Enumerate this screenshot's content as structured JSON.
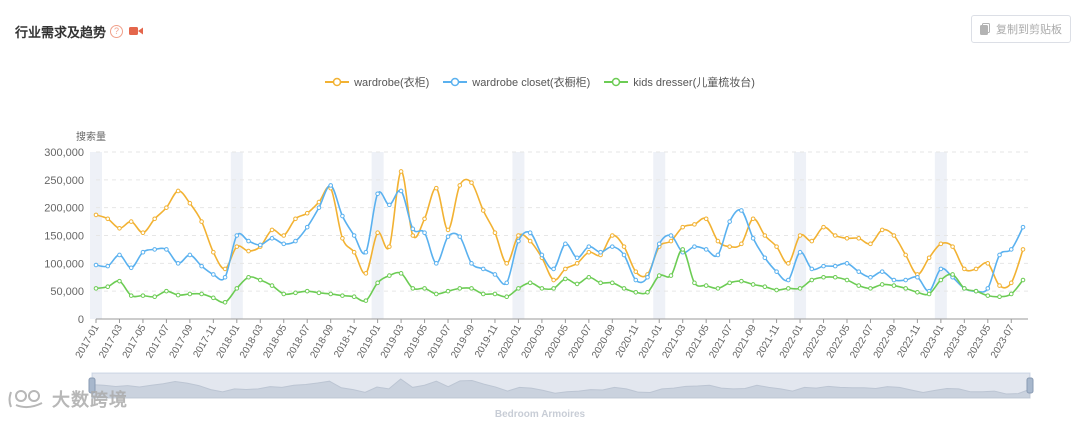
{
  "header": {
    "title": "行业需求及趋势",
    "help_icon": "question-circle-icon",
    "video_icon": "video-camera-icon",
    "copy_button_label": "复制到剪贴板",
    "copy_icon": "copy-icon"
  },
  "watermark": {
    "text": "大数跨境",
    "icon": "logo-icon"
  },
  "colors": {
    "wardrobe": "#f2b233",
    "closet": "#5ab1ef",
    "kids": "#6ccc54",
    "accent": "#e4664b"
  },
  "chart_data": {
    "type": "line",
    "title": "",
    "xlabel": "",
    "ylabel": "搜索量",
    "ylim": [
      0,
      300000
    ],
    "yticks": [
      "0",
      "50,000",
      "100,000",
      "150,000",
      "200,000",
      "250,000",
      "300,000"
    ],
    "grid": true,
    "legend_position": "top-center",
    "zoom_slider_label": "Bedroom Armoires",
    "x_tick_labels": [
      "2017-01",
      "2017-03",
      "2017-05",
      "2017-07",
      "2017-09",
      "2017-11",
      "2018-01",
      "2018-03",
      "2018-05",
      "2018-07",
      "2018-09",
      "2018-11",
      "2019-01",
      "2019-03",
      "2019-05",
      "2019-07",
      "2019-09",
      "2019-11",
      "2020-01",
      "2020-03",
      "2020-05",
      "2020-07",
      "2020-09",
      "2020-11",
      "2021-01",
      "2021-03",
      "2021-05",
      "2021-07",
      "2021-09",
      "2021-11",
      "2022-01",
      "2022-03",
      "2022-05",
      "2022-07",
      "2022-09",
      "2022-11",
      "2023-01",
      "2023-03",
      "2023-05",
      "2023-07"
    ],
    "x": [
      "2017-01",
      "2017-02",
      "2017-03",
      "2017-04",
      "2017-05",
      "2017-06",
      "2017-07",
      "2017-08",
      "2017-09",
      "2017-10",
      "2017-11",
      "2017-12",
      "2018-01",
      "2018-02",
      "2018-03",
      "2018-04",
      "2018-05",
      "2018-06",
      "2018-07",
      "2018-08",
      "2018-09",
      "2018-10",
      "2018-11",
      "2018-12",
      "2019-01",
      "2019-02",
      "2019-03",
      "2019-04",
      "2019-05",
      "2019-06",
      "2019-07",
      "2019-08",
      "2019-09",
      "2019-10",
      "2019-11",
      "2019-12",
      "2020-01",
      "2020-02",
      "2020-03",
      "2020-04",
      "2020-05",
      "2020-06",
      "2020-07",
      "2020-08",
      "2020-09",
      "2020-10",
      "2020-11",
      "2020-12",
      "2021-01",
      "2021-02",
      "2021-03",
      "2021-04",
      "2021-05",
      "2021-06",
      "2021-07",
      "2021-08",
      "2021-09",
      "2021-10",
      "2021-11",
      "2021-12",
      "2022-01",
      "2022-02",
      "2022-03",
      "2022-04",
      "2022-05",
      "2022-06",
      "2022-07",
      "2022-08",
      "2022-09",
      "2022-10",
      "2022-11",
      "2022-12",
      "2023-01",
      "2023-02",
      "2023-03",
      "2023-04",
      "2023-05",
      "2023-06",
      "2023-07",
      "2023-08"
    ],
    "series": [
      {
        "name": "wardrobe(衣柜)",
        "color": "#f2b233",
        "values": [
          187000,
          180000,
          163000,
          175000,
          155000,
          180000,
          200000,
          230000,
          208000,
          175000,
          120000,
          90000,
          130000,
          122000,
          130000,
          160000,
          150000,
          180000,
          190000,
          210000,
          235000,
          145000,
          120000,
          82000,
          155000,
          130000,
          265000,
          150000,
          180000,
          235000,
          160000,
          240000,
          245000,
          195000,
          155000,
          100000,
          150000,
          140000,
          110000,
          70000,
          90000,
          100000,
          120000,
          115000,
          150000,
          130000,
          85000,
          80000,
          130000,
          140000,
          165000,
          170000,
          180000,
          140000,
          130000,
          135000,
          180000,
          150000,
          130000,
          100000,
          150000,
          140000,
          165000,
          150000,
          145000,
          145000,
          135000,
          160000,
          150000,
          115000,
          80000,
          110000,
          135000,
          130000,
          90000,
          90000,
          100000,
          60000,
          65000,
          125000
        ]
      },
      {
        "name": "wardrobe closet(衣橱柜)",
        "color": "#5ab1ef",
        "values": [
          97000,
          95000,
          115000,
          92000,
          120000,
          125000,
          125000,
          100000,
          115000,
          95000,
          80000,
          75000,
          150000,
          140000,
          133000,
          145000,
          135000,
          140000,
          165000,
          200000,
          240000,
          185000,
          150000,
          120000,
          225000,
          205000,
          230000,
          162000,
          155000,
          100000,
          148000,
          148000,
          100000,
          90000,
          80000,
          65000,
          140000,
          155000,
          115000,
          90000,
          135000,
          110000,
          130000,
          120000,
          130000,
          115000,
          70000,
          75000,
          135000,
          150000,
          120000,
          130000,
          125000,
          115000,
          175000,
          195000,
          145000,
          110000,
          85000,
          70000,
          120000,
          90000,
          95000,
          95000,
          100000,
          85000,
          75000,
          85000,
          70000,
          70000,
          75000,
          50000,
          90000,
          75000,
          55000,
          50000,
          55000,
          115000,
          125000,
          165000
        ]
      },
      {
        "name": "kids dresser(儿童梳妆台)",
        "color": "#6ccc54",
        "values": [
          55000,
          58000,
          68000,
          42000,
          42000,
          40000,
          50000,
          43000,
          45000,
          45000,
          38000,
          30000,
          55000,
          75000,
          70000,
          60000,
          45000,
          47000,
          50000,
          47000,
          45000,
          42000,
          40000,
          33000,
          65000,
          78000,
          82000,
          55000,
          55000,
          45000,
          50000,
          55000,
          55000,
          45000,
          45000,
          40000,
          55000,
          65000,
          55000,
          55000,
          72000,
          63000,
          75000,
          65000,
          65000,
          55000,
          48000,
          48000,
          78000,
          78000,
          125000,
          65000,
          60000,
          55000,
          65000,
          68000,
          62000,
          58000,
          52000,
          55000,
          55000,
          70000,
          75000,
          75000,
          70000,
          60000,
          55000,
          62000,
          60000,
          55000,
          48000,
          45000,
          70000,
          80000,
          55000,
          50000,
          42000,
          40000,
          45000,
          70000
        ]
      }
    ]
  }
}
